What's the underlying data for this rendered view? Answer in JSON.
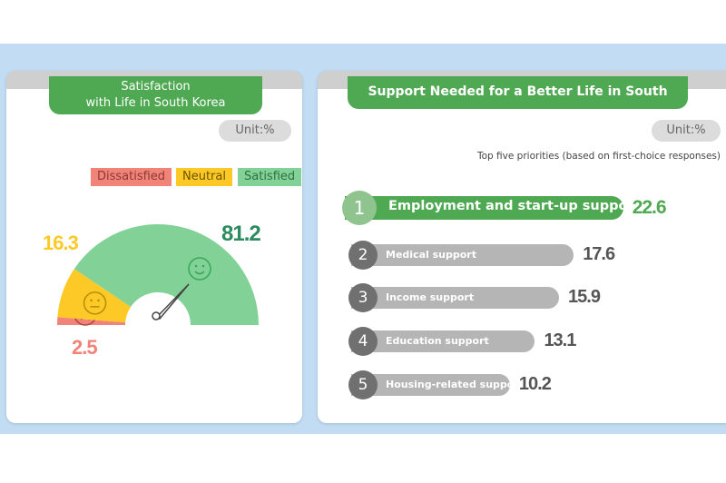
{
  "colors": {
    "dissatisfied": "#f18378",
    "neutral": "#fcc927",
    "satisfied": "#82d197",
    "top": "#4fa953",
    "bar": "#b5b5b5",
    "rank": "#707070",
    "bg": "#c2dcf4"
  },
  "chart_data": [
    {
      "type": "gauge",
      "title": "Satisfaction with Life in South Korea",
      "title_lines": [
        "Satisfaction",
        "with Life in South Korea"
      ],
      "unit": "Unit:%",
      "categories": [
        "Dissatisfied",
        "Neutral",
        "Satisfied"
      ],
      "values": [
        2.5,
        16.3,
        81.2
      ],
      "icons": [
        "sad-face-icon",
        "neutral-face-icon",
        "smile-face-icon"
      ],
      "legend": "top-right"
    },
    {
      "type": "bar",
      "orientation": "horizontal",
      "title": "Support Needed for a Better Life in South Korea",
      "unit": "Unit:%",
      "subtitle": "Top five priorities (based on first-choice responses)",
      "ranks": [
        "1",
        "2",
        "3",
        "4",
        "5"
      ],
      "categories": [
        "Employment and start-up support",
        "Medical support",
        "Income support",
        "Education support",
        "Housing-related support"
      ],
      "values": [
        22.6,
        17.6,
        15.9,
        13.1,
        10.2
      ],
      "value_labels": [
        "22.6",
        "17.6",
        "15.9",
        "13.1",
        "10.2"
      ]
    }
  ]
}
